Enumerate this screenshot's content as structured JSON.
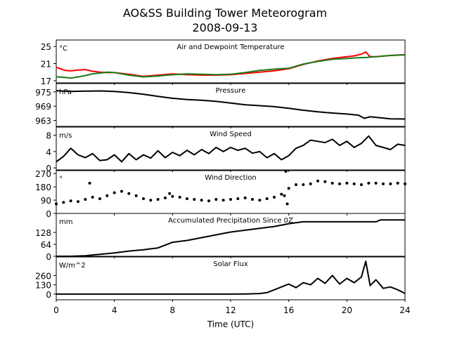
{
  "figure": {
    "title_line1": "AO&SS Building Tower Meteorogram",
    "title_line2": "2008-09-13",
    "xlabel": "Time (UTC)",
    "xticks": [
      0,
      4,
      8,
      12,
      16,
      20,
      24
    ],
    "xlim": [
      0,
      24
    ]
  },
  "chart_data": [
    {
      "type": "line",
      "title": "Air and Dewpoint Temperature",
      "unit_label": "°C",
      "ylim": [
        16.5,
        26.5
      ],
      "yticks": [
        17,
        21,
        25
      ],
      "series": [
        {
          "color": "#ff0000",
          "x": [
            0,
            0.3,
            0.6,
            1.0,
            1.5,
            2.0,
            2.5,
            3.0,
            3.5,
            4.0,
            5,
            6,
            7,
            8,
            9,
            10,
            11,
            12,
            13,
            14,
            15,
            16,
            17,
            18,
            19,
            20,
            20.5,
            21.0,
            21.3,
            21.6,
            22,
            23,
            24
          ],
          "y": [
            20.1,
            19.8,
            19.4,
            19.3,
            19.5,
            19.6,
            19.2,
            19.0,
            18.9,
            18.9,
            18.5,
            18.0,
            18.3,
            18.6,
            18.4,
            18.3,
            18.3,
            18.4,
            18.7,
            19.0,
            19.3,
            19.8,
            20.8,
            21.6,
            22.2,
            22.6,
            22.8,
            23.2,
            23.7,
            22.6,
            22.6,
            22.9,
            23.1
          ]
        },
        {
          "color": "#1a7a1a",
          "x": [
            0,
            0.5,
            1.0,
            1.5,
            2.0,
            2.5,
            3.0,
            3.5,
            4.0,
            5,
            6,
            7,
            8,
            9,
            10,
            11,
            12,
            13,
            14,
            15,
            16,
            17,
            18,
            19,
            20,
            20.5,
            21.0,
            21.3,
            21.6,
            22,
            23,
            24
          ],
          "y": [
            17.9,
            17.8,
            17.6,
            17.9,
            18.2,
            18.6,
            18.8,
            19.0,
            18.9,
            18.3,
            17.9,
            18.1,
            18.4,
            18.6,
            18.5,
            18.4,
            18.5,
            18.9,
            19.4,
            19.7,
            19.9,
            20.9,
            21.5,
            22.0,
            22.2,
            22.3,
            22.4,
            22.4,
            22.5,
            22.6,
            22.9,
            23.0
          ]
        }
      ]
    },
    {
      "type": "line",
      "title": "Pressure",
      "unit_label": "hPa",
      "ylim": [
        960.5,
        978.5
      ],
      "yticks": [
        963,
        969,
        975
      ],
      "series": [
        {
          "color": "#000000",
          "x": [
            0,
            1,
            2,
            3,
            4,
            5,
            6,
            7,
            8,
            9,
            10,
            11,
            12,
            13,
            14,
            15,
            16,
            17,
            18,
            19,
            20,
            20.8,
            21.2,
            21.6,
            22,
            23,
            24
          ],
          "y": [
            975.5,
            975.2,
            975.3,
            975.4,
            975.2,
            974.7,
            974.0,
            973.1,
            972.3,
            971.8,
            971.5,
            971.0,
            970.3,
            969.6,
            969.2,
            968.8,
            968.1,
            967.3,
            966.6,
            966.1,
            965.7,
            965.2,
            963.9,
            964.5,
            964.3,
            963.7,
            963.6
          ]
        }
      ]
    },
    {
      "type": "line",
      "title": "Wind Speed",
      "unit_label": "m/s",
      "ylim": [
        -0.5,
        10.0
      ],
      "yticks": [
        0,
        4,
        8
      ],
      "series": [
        {
          "color": "#000000",
          "x": [
            0,
            0.5,
            1.0,
            1.5,
            2.0,
            2.5,
            3.0,
            3.5,
            4.0,
            4.5,
            5.0,
            5.5,
            6.0,
            6.5,
            7.0,
            7.5,
            8.0,
            8.5,
            9.0,
            9.5,
            10.0,
            10.5,
            11.0,
            11.5,
            12.0,
            12.5,
            13.0,
            13.5,
            14.0,
            14.5,
            15.0,
            15.5,
            16.0,
            16.5,
            17.0,
            17.5,
            18.0,
            18.5,
            19.0,
            19.5,
            20.0,
            20.5,
            21.0,
            21.5,
            22.0,
            22.5,
            23.0,
            23.5,
            24.0
          ],
          "y": [
            1.5,
            2.8,
            4.8,
            3.2,
            2.5,
            3.5,
            1.8,
            2.0,
            3.2,
            1.5,
            3.5,
            2.0,
            3.2,
            2.4,
            4.2,
            2.5,
            3.8,
            3.0,
            4.3,
            3.2,
            4.5,
            3.5,
            5.0,
            4.0,
            5.0,
            4.3,
            4.8,
            3.6,
            4.0,
            2.5,
            3.5,
            2.0,
            3.0,
            4.8,
            5.5,
            6.8,
            6.5,
            6.2,
            7.0,
            5.5,
            6.5,
            5.0,
            6.0,
            7.8,
            5.5,
            5.0,
            4.5,
            5.8,
            5.5
          ]
        }
      ]
    },
    {
      "type": "scatter",
      "title": "Wind Direction",
      "unit_label": "°",
      "ylim": [
        0,
        290
      ],
      "yticks": [
        0,
        90,
        180,
        270
      ],
      "series": [
        {
          "color": "#000000",
          "x": [
            0,
            0.5,
            1.0,
            1.5,
            2.0,
            2.5,
            3.0,
            3.5,
            4.0,
            4.5,
            5.0,
            5.5,
            6.0,
            6.5,
            7.0,
            7.5,
            8.0,
            8.5,
            9.0,
            9.5,
            10.0,
            10.5,
            11.0,
            11.5,
            12.0,
            12.5,
            13.0,
            13.5,
            14.0,
            14.5,
            15.0,
            15.5,
            16.0,
            16.5,
            17.0,
            17.5,
            18.0,
            18.5,
            19.0,
            19.5,
            20.0,
            20.5,
            21.0,
            21.5,
            22.0,
            22.5,
            23.0,
            23.5,
            24.0
          ],
          "y": [
            65,
            75,
            85,
            80,
            95,
            110,
            100,
            120,
            140,
            150,
            135,
            120,
            100,
            90,
            95,
            105,
            115,
            110,
            100,
            95,
            90,
            85,
            95,
            90,
            95,
            100,
            105,
            95,
            90,
            100,
            110,
            130,
            170,
            195,
            195,
            200,
            220,
            215,
            205,
            200,
            205,
            200,
            195,
            205,
            205,
            200,
            200,
            205,
            200
          ]
        },
        {
          "color": "#000000",
          "x": [
            2.3,
            7.8,
            15.7,
            15.8,
            15.9
          ],
          "y": [
            205,
            135,
            120,
            285,
            65
          ]
        }
      ]
    },
    {
      "type": "line",
      "title": "Accumulated Precipitation Since 0Z",
      "unit_label": "mm",
      "ylim": [
        0,
        230
      ],
      "yticks": [
        0,
        64,
        128
      ],
      "series": [
        {
          "color": "#000000",
          "x": [
            0,
            1,
            2,
            3,
            4,
            5,
            6,
            7,
            7.5,
            8,
            9,
            10,
            11,
            12,
            13,
            14,
            15,
            16,
            17,
            18,
            19,
            20,
            21,
            22,
            22.3,
            23,
            24
          ],
          "y": [
            0,
            0,
            3,
            10,
            18,
            28,
            35,
            45,
            60,
            75,
            85,
            100,
            115,
            130,
            140,
            150,
            160,
            175,
            185,
            185,
            185,
            185,
            185,
            185,
            195,
            195,
            195
          ]
        }
      ]
    },
    {
      "type": "line",
      "title": "Solar Flux",
      "unit_label": "W/m^2",
      "ylim": [
        -80,
        520
      ],
      "yticks": [
        0,
        130,
        260
      ],
      "series": [
        {
          "color": "#000000",
          "x": [
            0,
            2,
            4,
            6,
            8,
            10,
            12,
            13,
            14,
            14.5,
            15,
            15.5,
            16,
            16.5,
            17,
            17.5,
            18,
            18.5,
            19,
            19.5,
            20,
            20.5,
            21,
            21.3,
            21.6,
            22,
            22.5,
            23,
            23.5,
            24
          ],
          "y": [
            0,
            0,
            0,
            0,
            0,
            0,
            0,
            2,
            8,
            20,
            60,
            100,
            140,
            90,
            160,
            130,
            220,
            150,
            260,
            140,
            220,
            160,
            240,
            460,
            120,
            200,
            80,
            100,
            60,
            10
          ]
        }
      ]
    }
  ]
}
